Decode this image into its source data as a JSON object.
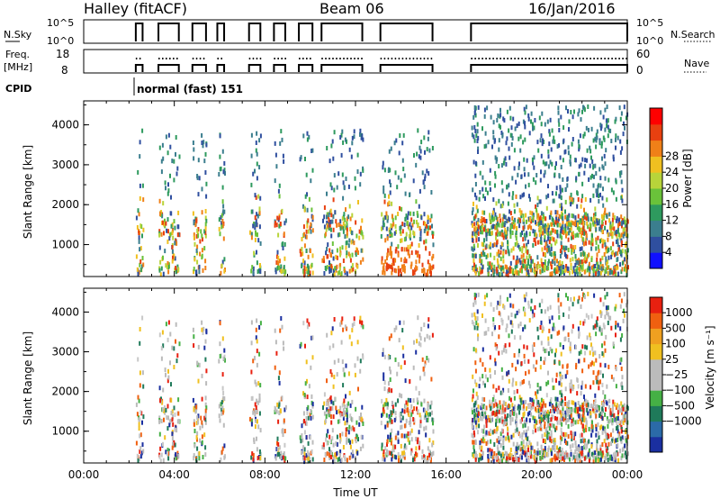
{
  "header": {
    "station": "Halley (fitACF)",
    "beam": "Beam 06",
    "date": "16/Jan/2016"
  },
  "strip": {
    "nsky_label": "N.Sky",
    "nsky_ticks": [
      "10^5",
      "10^0"
    ],
    "nsearch_label": "N.Search",
    "nsearch_ticks": [
      "10^5",
      "10^0"
    ],
    "freq_label_1": "Freq.",
    "freq_label_2": "[MHz]",
    "freq_ticks": [
      "18",
      "8"
    ],
    "nave_label": "Nave",
    "nave_ticks": [
      "60",
      "0"
    ],
    "cpid_label": "CPID",
    "cpid_value": "normal (fast) 151"
  },
  "chart_data": [
    {
      "type": "heatmap",
      "name": "power-panel",
      "ylabel": "Slant Range [km]",
      "ylim": [
        200,
        4600
      ],
      "yticks": [
        "1000",
        "2000",
        "3000",
        "4000"
      ],
      "colorbar": {
        "label": "Power [dB]",
        "ticks": [
          "4",
          "8",
          "12",
          "16",
          "20",
          "24",
          "28"
        ],
        "colors": [
          "#1010ff",
          "#2f4f9f",
          "#3b7e8e",
          "#2e9a5e",
          "#6ac23a",
          "#b8d43a",
          "#f0c020",
          "#f08018",
          "#e84010",
          "#ff0000"
        ]
      },
      "xlim": [
        0,
        24
      ],
      "active_intervals_hr": [
        [
          2.3,
          2.6
        ],
        [
          3.3,
          4.2
        ],
        [
          4.8,
          5.4
        ],
        [
          5.9,
          6.2
        ],
        [
          7.3,
          7.8
        ],
        [
          8.4,
          8.9
        ],
        [
          9.5,
          10.1
        ],
        [
          10.5,
          12.3
        ],
        [
          13.1,
          15.4
        ],
        [
          17.1,
          24
        ]
      ]
    },
    {
      "type": "heatmap",
      "name": "velocity-panel",
      "xlabel": "Time UT",
      "ylabel": "Slant Range [km]",
      "ylim": [
        200,
        4600
      ],
      "yticks": [
        "1000",
        "2000",
        "3000",
        "4000"
      ],
      "xticks": [
        "00:00",
        "04:00",
        "08:00",
        "12:00",
        "16:00",
        "20:00",
        "00:00"
      ],
      "colorbar": {
        "label": "Velocity [m s⁻¹]",
        "ticks": [
          "1000",
          "500",
          "100",
          "25",
          "−25",
          "−100",
          "−500",
          "−1000"
        ],
        "colors": [
          "#1a2fa0",
          "#2b6aa8",
          "#1f7a5a",
          "#45b045",
          "#bbbbbb",
          "#bbbbbb",
          "#f0c020",
          "#f0a020",
          "#f06010",
          "#e82010"
        ]
      },
      "xlim": [
        0,
        24
      ]
    }
  ]
}
